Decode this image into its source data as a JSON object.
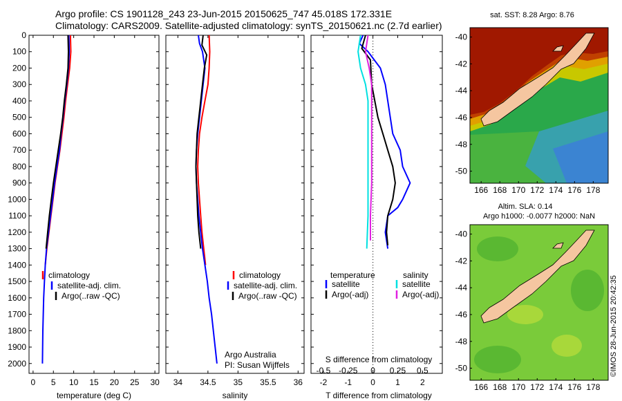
{
  "header": {
    "line1": "Argo profile: CS 1901128_243 23-Jun-2015 20150625_747 45.018S 172.331E",
    "line2": "Climatology: CARS2009. Satellite-adjusted climatology: synTS_20150621.nc (2.7d earlier)"
  },
  "credit": "Argo Australia",
  "pi": "PI: Susan Wijffels",
  "stamp": "©IMOS 28-Jun-2015 20:42:35",
  "colors": {
    "climatology": "#ff0000",
    "satellite": "#0000ff",
    "argo": "#000000",
    "cyan": "#00e0e0",
    "magenta": "#e020e0"
  },
  "chart_data": [
    {
      "type": "line",
      "xlabel": "temperature (deg C)",
      "ylabel": "",
      "xlim": [
        -1,
        31
      ],
      "ylim": [
        2060,
        0
      ],
      "xticks": [
        "0",
        "5",
        "10",
        "15",
        "20",
        "25",
        "30"
      ],
      "yticks": [
        "0",
        "100",
        "200",
        "300",
        "400",
        "500",
        "600",
        "700",
        "800",
        "900",
        "1000",
        "1100",
        "1200",
        "1300",
        "1400",
        "1500",
        "1600",
        "1700",
        "1800",
        "1900",
        "2000"
      ],
      "legend": [
        "climatology",
        "satellite-adj. clim.",
        "Argo(..raw -QC)"
      ],
      "series": [
        {
          "name": "climatology",
          "color": "#ff0000",
          "points": [
            [
              9.2,
              0
            ],
            [
              9.3,
              100
            ],
            [
              9.0,
              200
            ],
            [
              8.5,
              300
            ],
            [
              8.0,
              400
            ],
            [
              7.6,
              500
            ],
            [
              7.1,
              600
            ],
            [
              6.6,
              700
            ],
            [
              6.0,
              800
            ],
            [
              5.4,
              900
            ],
            [
              4.9,
              1000
            ],
            [
              4.4,
              1100
            ],
            [
              3.9,
              1200
            ],
            [
              3.4,
              1300
            ],
            [
              3.0,
              1400
            ]
          ]
        },
        {
          "name": "satellite-adj. clim.",
          "color": "#0000ff",
          "points": [
            [
              8.8,
              0
            ],
            [
              8.9,
              100
            ],
            [
              8.7,
              200
            ],
            [
              8.3,
              300
            ],
            [
              7.8,
              400
            ],
            [
              7.4,
              500
            ],
            [
              6.9,
              600
            ],
            [
              6.5,
              700
            ],
            [
              5.9,
              800
            ],
            [
              5.3,
              900
            ],
            [
              4.8,
              1000
            ],
            [
              4.3,
              1100
            ],
            [
              3.8,
              1200
            ],
            [
              3.3,
              1300
            ],
            [
              3.0,
              1400
            ],
            [
              2.8,
              1500
            ],
            [
              2.6,
              1600
            ],
            [
              2.5,
              1700
            ],
            [
              2.4,
              1800
            ],
            [
              2.35,
              1900
            ],
            [
              2.3,
              2000
            ]
          ]
        },
        {
          "name": "Argo(..raw -QC)",
          "color": "#000000",
          "points": [
            [
              8.6,
              0
            ],
            [
              8.7,
              100
            ],
            [
              8.6,
              200
            ],
            [
              8.2,
              300
            ],
            [
              7.7,
              400
            ],
            [
              7.3,
              500
            ],
            [
              6.8,
              600
            ],
            [
              6.2,
              700
            ],
            [
              5.6,
              800
            ],
            [
              5.0,
              900
            ],
            [
              4.5,
              1000
            ],
            [
              4.0,
              1100
            ],
            [
              3.6,
              1200
            ],
            [
              3.2,
              1300
            ]
          ]
        }
      ]
    },
    {
      "type": "line",
      "xlabel": "salinity",
      "ylabel": "",
      "xlim": [
        33.8,
        36.1
      ],
      "ylim": [
        2060,
        0
      ],
      "xticks": [
        "34",
        "34.5",
        "35",
        "35.5",
        "36"
      ],
      "legend": [
        "climatology",
        "satellite-adj. clim.",
        "Argo(..raw -QC)"
      ],
      "series": [
        {
          "name": "climatology",
          "color": "#ff0000",
          "points": [
            [
              34.52,
              0
            ],
            [
              34.53,
              100
            ],
            [
              34.52,
              200
            ],
            [
              34.5,
              300
            ],
            [
              34.45,
              400
            ],
            [
              34.4,
              500
            ],
            [
              34.36,
              600
            ],
            [
              34.34,
              700
            ],
            [
              34.33,
              800
            ],
            [
              34.34,
              900
            ],
            [
              34.36,
              1000
            ],
            [
              34.38,
              1100
            ],
            [
              34.4,
              1200
            ],
            [
              34.43,
              1300
            ],
            [
              34.46,
              1400
            ]
          ]
        },
        {
          "name": "satellite-adj. clim.",
          "color": "#0000ff",
          "points": [
            [
              34.34,
              0
            ],
            [
              34.36,
              50
            ],
            [
              34.41,
              100
            ],
            [
              34.45,
              200
            ],
            [
              34.42,
              300
            ],
            [
              34.39,
              400
            ],
            [
              34.36,
              500
            ],
            [
              34.33,
              600
            ],
            [
              34.31,
              700
            ],
            [
              34.3,
              800
            ],
            [
              34.31,
              900
            ],
            [
              34.33,
              1000
            ],
            [
              34.35,
              1100
            ],
            [
              34.38,
              1200
            ],
            [
              34.41,
              1300
            ],
            [
              34.45,
              1400
            ],
            [
              34.49,
              1500
            ],
            [
              34.52,
              1600
            ],
            [
              34.56,
              1700
            ],
            [
              34.59,
              1800
            ],
            [
              34.62,
              1900
            ],
            [
              34.65,
              2000
            ]
          ]
        },
        {
          "name": "Argo(..raw -QC)",
          "color": "#000000",
          "points": [
            [
              34.42,
              0
            ],
            [
              34.4,
              60
            ],
            [
              34.48,
              120
            ],
            [
              34.44,
              200
            ],
            [
              34.41,
              300
            ],
            [
              34.38,
              400
            ],
            [
              34.35,
              500
            ],
            [
              34.32,
              600
            ],
            [
              34.31,
              700
            ],
            [
              34.3,
              800
            ],
            [
              34.31,
              900
            ],
            [
              34.32,
              1000
            ],
            [
              34.33,
              1100
            ],
            [
              34.35,
              1200
            ],
            [
              34.38,
              1300
            ]
          ]
        }
      ]
    },
    {
      "type": "line",
      "xlabel": "T difference from climatology",
      "xlabel2": "S difference from climatology",
      "xlim": [
        -2.5,
        2.8
      ],
      "ylim": [
        2060,
        0
      ],
      "xticks": [
        "-2",
        "-1",
        "0",
        "1",
        "2"
      ],
      "xticks2": [
        "-0.5",
        "-0.25",
        "0",
        "0.25",
        "0.5"
      ],
      "legend_t_title": "temperature",
      "legend_s_title": "salinity",
      "legend_t": [
        "satellite",
        "Argo(-adj)"
      ],
      "legend_s": [
        "satellite",
        "Argo(-adj)"
      ],
      "series": [
        {
          "name": "T satellite",
          "color": "#0000ff",
          "points": [
            [
              -0.4,
              0
            ],
            [
              -0.55,
              50
            ],
            [
              -0.2,
              100
            ],
            [
              0.3,
              200
            ],
            [
              0.5,
              300
            ],
            [
              0.6,
              400
            ],
            [
              0.7,
              500
            ],
            [
              0.8,
              600
            ],
            [
              1.1,
              700
            ],
            [
              1.2,
              800
            ],
            [
              1.5,
              900
            ],
            [
              1.2,
              1000
            ],
            [
              1.0,
              1050
            ],
            [
              0.6,
              1100
            ],
            [
              0.5,
              1200
            ],
            [
              0.6,
              1300
            ]
          ]
        },
        {
          "name": "T Argo(-adj)",
          "color": "#000000",
          "points": [
            [
              -0.3,
              0
            ],
            [
              -0.45,
              80
            ],
            [
              -0.1,
              150
            ],
            [
              -0.05,
              300
            ],
            [
              0.2,
              500
            ],
            [
              0.4,
              600
            ],
            [
              0.6,
              700
            ],
            [
              0.8,
              800
            ],
            [
              0.9,
              900
            ],
            [
              0.8,
              1000
            ],
            [
              0.6,
              1100
            ],
            [
              0.55,
              1200
            ],
            [
              0.6,
              1280
            ]
          ]
        },
        {
          "name": "S satellite",
          "color": "#00e0e0",
          "points": [
            [
              -0.5,
              0
            ],
            [
              -0.6,
              100
            ],
            [
              -0.5,
              200
            ],
            [
              -0.3,
              300
            ],
            [
              -0.2,
              400
            ],
            [
              -0.2,
              500
            ],
            [
              -0.2,
              700
            ],
            [
              -0.2,
              900
            ],
            [
              -0.2,
              1100
            ],
            [
              -0.25,
              1300
            ]
          ]
        },
        {
          "name": "S Argo(-adj)",
          "color": "#e020e0",
          "points": [
            [
              -0.2,
              0
            ],
            [
              -0.3,
              100
            ],
            [
              -0.15,
              200
            ],
            [
              -0.05,
              300
            ],
            [
              -0.05,
              500
            ],
            [
              -0.05,
              700
            ],
            [
              -0.05,
              900
            ],
            [
              -0.1,
              1100
            ],
            [
              -0.1,
              1250
            ]
          ]
        }
      ]
    }
  ],
  "maps": [
    {
      "title": "sat. SST: 8.28 Argo: 8.76",
      "lon_ticks": [
        "166",
        "168",
        "170",
        "172",
        "174",
        "176",
        "178"
      ],
      "lat_ticks": [
        "-40",
        "-42",
        "-44",
        "-46",
        "-48",
        "-50"
      ]
    },
    {
      "title1": "Altim. SLA: 0.14",
      "title2": "Argo h1000: -0.0077 h2000: NaN",
      "lon_ticks": [
        "166",
        "168",
        "170",
        "172",
        "174",
        "176",
        "178"
      ],
      "lat_ticks": [
        "-40",
        "-42",
        "-44",
        "-46",
        "-48",
        "-50"
      ]
    }
  ]
}
